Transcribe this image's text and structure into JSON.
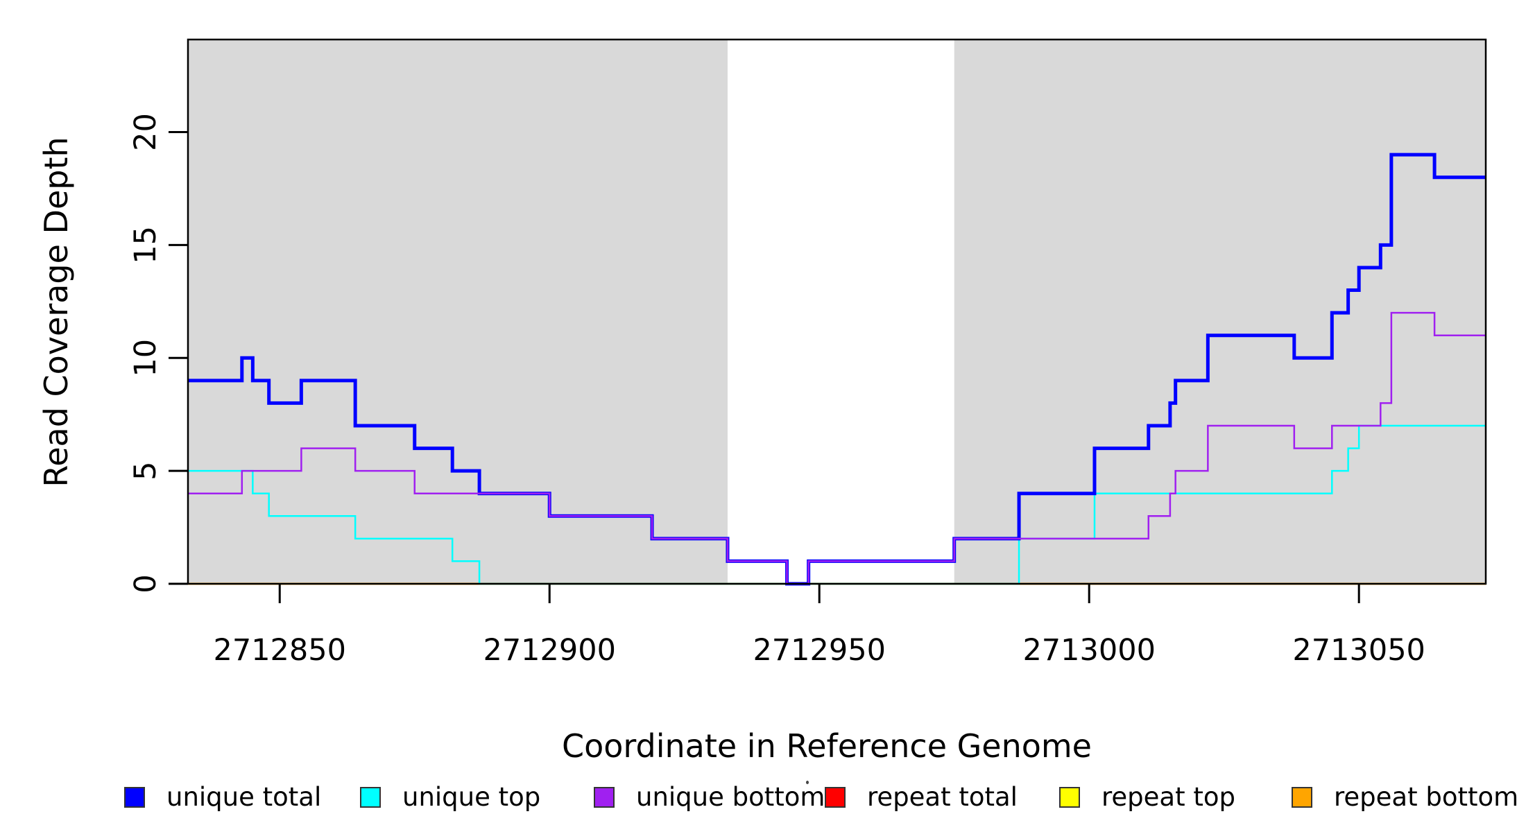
{
  "chart_data": {
    "type": "line",
    "subtype": "step-coverage",
    "title": "",
    "xlabel": "Coordinate in Reference Genome",
    "ylabel": "Read Coverage Depth",
    "xlim": [
      2712833,
      2713073.5
    ],
    "ylim": [
      0,
      24.1
    ],
    "x_ticks": [
      2712850,
      2712900,
      2712950,
      2713000,
      2713050
    ],
    "x_tick_labels": [
      "2712850",
      "2712900",
      "2712950",
      "2713000",
      "2713050"
    ],
    "y_ticks": [
      0,
      5,
      10,
      15,
      20
    ],
    "y_tick_labels": [
      "0",
      "5",
      "10",
      "15",
      "20"
    ],
    "grid": false,
    "legend_position": "bottom",
    "plot_background": "#ffffff",
    "box_color": "#000000",
    "shaded_regions": [
      {
        "name": "gray-band-left",
        "x0": 2712833,
        "x1": 2712933,
        "color": "#d9d9d9"
      },
      {
        "name": "gray-band-right",
        "x0": 2712975,
        "x1": 2713073.5,
        "color": "#d9d9d9"
      }
    ],
    "series": [
      {
        "name": "unique total",
        "color": "#0000ff",
        "width": 5,
        "steps": [
          [
            2712833,
            9
          ],
          [
            2712843,
            10
          ],
          [
            2712845,
            9
          ],
          [
            2712848,
            8
          ],
          [
            2712854,
            9
          ],
          [
            2712864,
            7
          ],
          [
            2712875,
            6
          ],
          [
            2712882,
            5
          ],
          [
            2712887,
            4
          ],
          [
            2712900,
            3
          ],
          [
            2712919,
            2
          ],
          [
            2712933,
            1
          ],
          [
            2712944,
            0
          ],
          [
            2712948,
            1
          ],
          [
            2712975,
            2
          ],
          [
            2712987,
            4
          ],
          [
            2713001,
            6
          ],
          [
            2713011,
            7
          ],
          [
            2713015,
            8
          ],
          [
            2713016,
            9
          ],
          [
            2713022,
            11
          ],
          [
            2713038,
            10
          ],
          [
            2713045,
            12
          ],
          [
            2713048,
            13
          ],
          [
            2713050,
            14
          ],
          [
            2713054,
            15
          ],
          [
            2713056,
            19
          ],
          [
            2713064,
            18
          ]
        ]
      },
      {
        "name": "unique top",
        "color": "#00ffff",
        "width": 2.5,
        "steps": [
          [
            2712833,
            5
          ],
          [
            2712845,
            4
          ],
          [
            2712848,
            3
          ],
          [
            2712864,
            2
          ],
          [
            2712882,
            1
          ],
          [
            2712887,
            0
          ],
          [
            2712987,
            2
          ],
          [
            2713001,
            4
          ],
          [
            2713045,
            5
          ],
          [
            2713048,
            6
          ],
          [
            2713050,
            7
          ]
        ]
      },
      {
        "name": "unique bottom",
        "color": "#a020f0",
        "width": 2.5,
        "steps": [
          [
            2712833,
            4
          ],
          [
            2712843,
            5
          ],
          [
            2712854,
            6
          ],
          [
            2712864,
            5
          ],
          [
            2712875,
            4
          ],
          [
            2712900,
            3
          ],
          [
            2712919,
            2
          ],
          [
            2712933,
            1
          ],
          [
            2712944,
            0
          ],
          [
            2712948,
            1
          ],
          [
            2712975,
            2
          ],
          [
            2713011,
            3
          ],
          [
            2713015,
            4
          ],
          [
            2713016,
            5
          ],
          [
            2713022,
            7
          ],
          [
            2713038,
            6
          ],
          [
            2713045,
            7
          ],
          [
            2713054,
            8
          ],
          [
            2713056,
            12
          ],
          [
            2713064,
            11
          ]
        ]
      },
      {
        "name": "repeat total",
        "color": "#ff0000",
        "width": 2.5,
        "steps": [
          [
            2712833,
            0
          ]
        ]
      },
      {
        "name": "repeat top",
        "color": "#ffff00",
        "width": 2.5,
        "steps": [
          [
            2712833,
            0
          ]
        ]
      },
      {
        "name": "repeat bottom",
        "color": "#ffa500",
        "width": 3,
        "steps": [
          [
            2712833,
            0
          ]
        ]
      }
    ],
    "draw_order": [
      "repeat total",
      "repeat top",
      "repeat bottom",
      "unique top",
      "unique total",
      "unique bottom"
    ]
  },
  "legend": {
    "items": [
      {
        "label": "unique total",
        "color": "#0000ff"
      },
      {
        "label": "unique top",
        "color": "#00ffff"
      },
      {
        "label": "unique bottom",
        "color": "#a020f0"
      },
      {
        "label": "repeat total",
        "color": "#ff0000"
      },
      {
        "label": "repeat top",
        "color": "#ffff00"
      },
      {
        "label": "repeat bottom",
        "color": "#ffa500"
      }
    ]
  }
}
